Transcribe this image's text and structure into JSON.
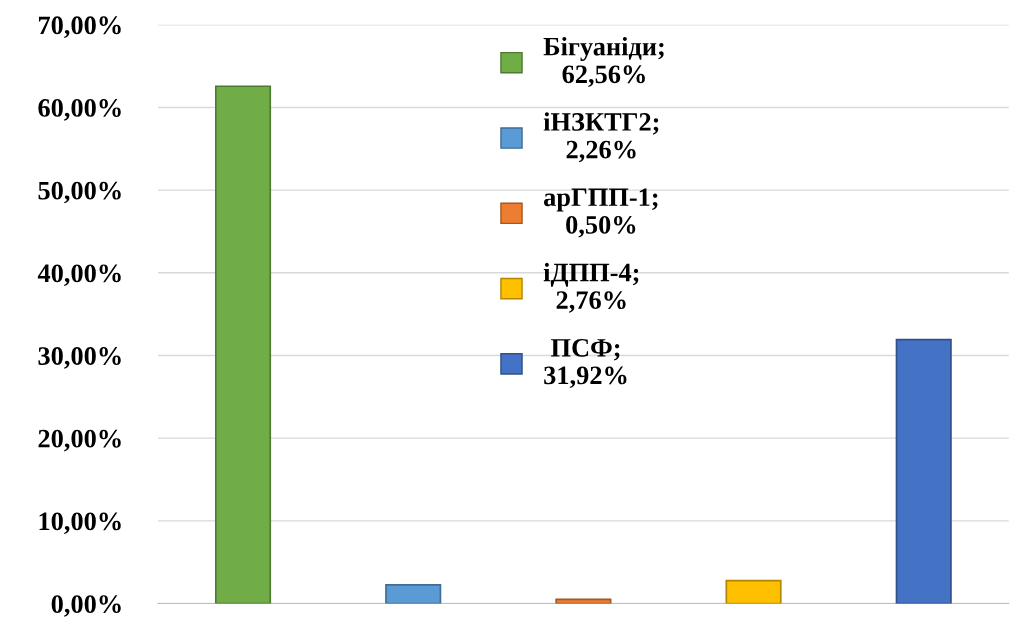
{
  "chart_data": {
    "type": "bar",
    "categories": [
      null,
      null,
      null,
      null,
      null
    ],
    "series": [
      {
        "name": "Бігуаніди;\n62,56%",
        "color": "#70ad47",
        "values": [
          62.56,
          null,
          null,
          null,
          null
        ]
      },
      {
        "name": "іНЗКТГ2;\n2,26%",
        "color": "#5b9bd5",
        "values": [
          null,
          2.26,
          null,
          null,
          null
        ]
      },
      {
        "name": "арГПП-1;\n0,50%",
        "color": "#ed7d31",
        "values": [
          null,
          null,
          0.5,
          null,
          null
        ]
      },
      {
        "name": "іДПП-4;\n2,76%",
        "color": "#ffc000",
        "values": [
          null,
          null,
          null,
          2.76,
          null
        ]
      },
      {
        "name": "ПСФ;\n31,92%",
        "color": "#4472c4",
        "values": [
          null,
          null,
          null,
          null,
          31.92
        ]
      }
    ],
    "ylim": [
      0,
      70
    ],
    "yticks": [
      {
        "value": 0,
        "label": "0,00%"
      },
      {
        "value": 10,
        "label": "10,00%"
      },
      {
        "value": 20,
        "label": "20,00%"
      },
      {
        "value": 30,
        "label": "30,00%"
      },
      {
        "value": 40,
        "label": "40,00%"
      },
      {
        "value": 50,
        "label": "50,00%"
      },
      {
        "value": 60,
        "label": "60,00%"
      },
      {
        "value": 70,
        "label": "70,00%"
      }
    ],
    "grid": "y",
    "legend": "top"
  }
}
